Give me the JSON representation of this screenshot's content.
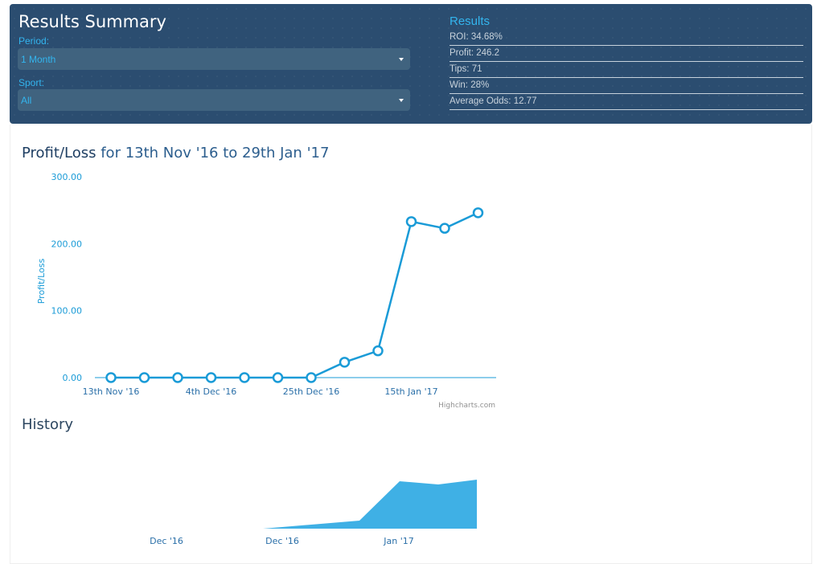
{
  "summary": {
    "title": "Results Summary",
    "period_label": "Period:",
    "period_value": "1 Month",
    "sport_label": "Sport:",
    "sport_value": "All"
  },
  "results": {
    "title": "Results",
    "items": [
      "ROI: 34.68%",
      "Profit: 246.2",
      "Tips: 71",
      "Win: 28%",
      "Average Odds: 12.77"
    ]
  },
  "chart": {
    "title_strong": "Profit/Loss",
    "title_rest": " for 13th Nov '16 to 29th Jan '17",
    "credit": "Highcharts.com"
  },
  "chart_data": [
    {
      "type": "line",
      "ylabel": "Profit/Loss",
      "ylim": [
        0,
        300
      ],
      "y_ticks": [
        "0.00",
        "100.00",
        "200.00",
        "300.00"
      ],
      "x_tick_labels": [
        "13th Nov '16",
        "4th Dec '16",
        "25th Dec '16",
        "15th Jan '17"
      ],
      "tick_step_points": 3,
      "values": [
        0,
        0,
        0,
        0,
        0,
        0,
        0,
        23,
        40,
        233,
        223,
        246.2
      ],
      "color": "#1a9bd7"
    },
    {
      "type": "area",
      "title": "History",
      "x_tick_labels": [
        "Dec '16",
        "Dec '16",
        "Jan '17"
      ],
      "color": "#3fb0e5"
    }
  ]
}
